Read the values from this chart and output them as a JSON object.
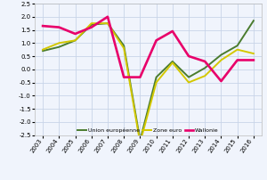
{
  "years": [
    2003,
    2004,
    2005,
    2006,
    2007,
    2008,
    2009,
    2010,
    2011,
    2012,
    2013,
    2014,
    2015,
    2016
  ],
  "union_europeenne": [
    0.7,
    0.85,
    1.1,
    1.7,
    1.75,
    0.9,
    -2.7,
    -0.3,
    0.3,
    -0.3,
    0.05,
    0.55,
    0.9,
    1.85
  ],
  "zone_euro": [
    0.75,
    1.0,
    1.1,
    1.75,
    1.75,
    0.8,
    -2.8,
    -0.5,
    0.25,
    -0.5,
    -0.25,
    0.35,
    0.75,
    0.6
  ],
  "wallonie": [
    1.65,
    1.6,
    1.35,
    1.6,
    2.0,
    -0.3,
    -0.3,
    1.1,
    1.45,
    0.5,
    0.3,
    -0.45,
    0.35,
    0.35
  ],
  "colors": {
    "union_europeenne": "#4a7c2f",
    "zone_euro": "#d4c800",
    "wallonie": "#e8006a"
  },
  "ylim": [
    -2.5,
    2.5
  ],
  "yticks": [
    -2.5,
    -2.0,
    -1.5,
    -1.0,
    -0.5,
    0.0,
    0.5,
    1.0,
    1.5,
    2.0,
    2.5
  ],
  "legend_labels": [
    "Union européenne",
    "Zone euro",
    "Wallonie"
  ],
  "grid_color": "#c8d4e8",
  "bg_color": "#f0f4fc"
}
